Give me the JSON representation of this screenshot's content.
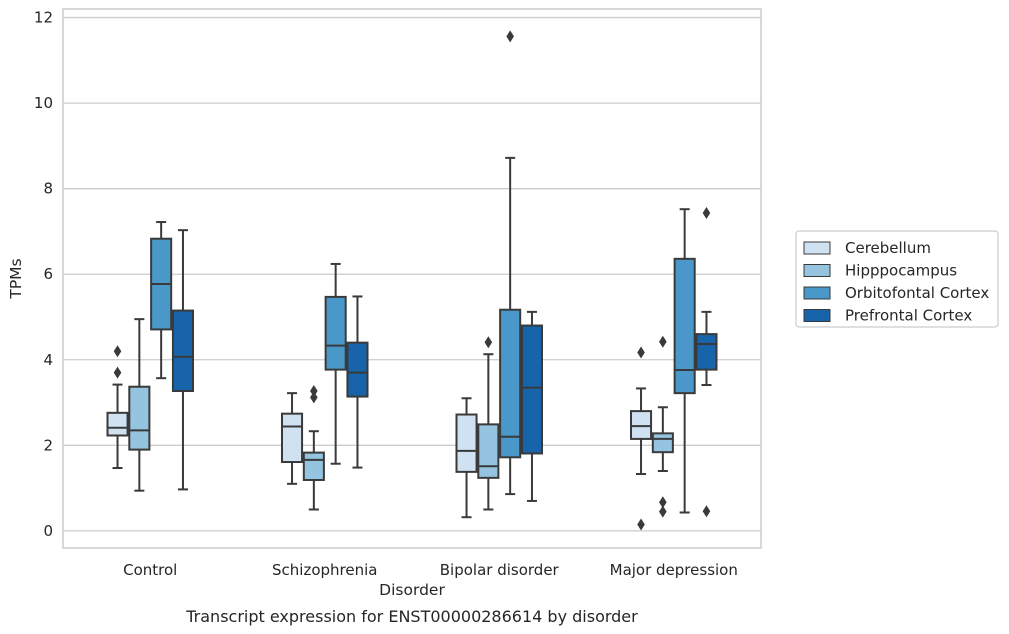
{
  "chart_data": {
    "type": "box",
    "title": "",
    "caption": "Transcript expression for ENST00000286614 by disorder",
    "xlabel": "Disorder",
    "ylabel": "TPMs",
    "ylim": [
      -0.4,
      12.2
    ],
    "yticks": [
      "0",
      "2",
      "4",
      "6",
      "8",
      "10",
      "12"
    ],
    "grid": "horizontal",
    "legend_placement": "right",
    "categories": [
      "Control",
      "Schizophrenia",
      "Bipolar disorder",
      "Major depression"
    ],
    "series": [
      {
        "name": "Cerebellum",
        "color": "#d0e1f2",
        "boxes": [
          {
            "whisker_low": 1.47,
            "q1": 2.23,
            "median": 2.41,
            "q3": 2.76,
            "whisker_high": 3.42,
            "outliers": [
              4.2,
              3.7
            ]
          },
          {
            "whisker_low": 1.1,
            "q1": 1.61,
            "median": 2.44,
            "q3": 2.74,
            "whisker_high": 3.22,
            "outliers": []
          },
          {
            "whisker_low": 0.32,
            "q1": 1.38,
            "median": 1.87,
            "q3": 2.72,
            "whisker_high": 3.1,
            "outliers": []
          },
          {
            "whisker_low": 1.33,
            "q1": 2.15,
            "median": 2.45,
            "q3": 2.8,
            "whisker_high": 3.33,
            "outliers": [
              4.17,
              0.15
            ]
          }
        ]
      },
      {
        "name": "Hipppocampus",
        "color": "#94c4df",
        "boxes": [
          {
            "whisker_low": 0.94,
            "q1": 1.9,
            "median": 2.35,
            "q3": 3.37,
            "whisker_high": 4.95,
            "outliers": []
          },
          {
            "whisker_low": 0.5,
            "q1": 1.19,
            "median": 1.66,
            "q3": 1.83,
            "whisker_high": 2.33,
            "outliers": [
              3.27,
              3.12
            ]
          },
          {
            "whisker_low": 0.5,
            "q1": 1.24,
            "median": 1.51,
            "q3": 2.49,
            "whisker_high": 4.13,
            "outliers": [
              4.41
            ]
          },
          {
            "whisker_low": 1.4,
            "q1": 1.84,
            "median": 2.15,
            "q3": 2.28,
            "whisker_high": 2.89,
            "outliers": [
              4.42,
              0.67,
              0.45
            ]
          }
        ]
      },
      {
        "name": "Orbitofontal Cortex",
        "color": "#4a98c9",
        "boxes": [
          {
            "whisker_low": 3.57,
            "q1": 4.71,
            "median": 5.77,
            "q3": 6.83,
            "whisker_high": 7.22,
            "outliers": []
          },
          {
            "whisker_low": 1.57,
            "q1": 3.77,
            "median": 4.33,
            "q3": 5.47,
            "whisker_high": 6.24,
            "outliers": []
          },
          {
            "whisker_low": 0.86,
            "q1": 1.72,
            "median": 2.2,
            "q3": 5.17,
            "whisker_high": 8.72,
            "outliers": [
              11.56
            ]
          },
          {
            "whisker_low": 0.43,
            "q1": 3.22,
            "median": 3.76,
            "q3": 6.36,
            "whisker_high": 7.52,
            "outliers": []
          }
        ]
      },
      {
        "name": "Prefrontal Cortex",
        "color": "#1764ab",
        "boxes": [
          {
            "whisker_low": 0.97,
            "q1": 3.27,
            "median": 4.07,
            "q3": 5.15,
            "whisker_high": 7.03,
            "outliers": []
          },
          {
            "whisker_low": 1.48,
            "q1": 3.14,
            "median": 3.7,
            "q3": 4.4,
            "whisker_high": 5.48,
            "outliers": []
          },
          {
            "whisker_low": 0.7,
            "q1": 1.81,
            "median": 3.35,
            "q3": 4.8,
            "whisker_high": 5.12,
            "outliers": []
          },
          {
            "whisker_low": 3.41,
            "q1": 3.77,
            "median": 4.37,
            "q3": 4.6,
            "whisker_high": 5.12,
            "outliers": [
              7.43,
              0.46
            ]
          }
        ]
      }
    ]
  }
}
